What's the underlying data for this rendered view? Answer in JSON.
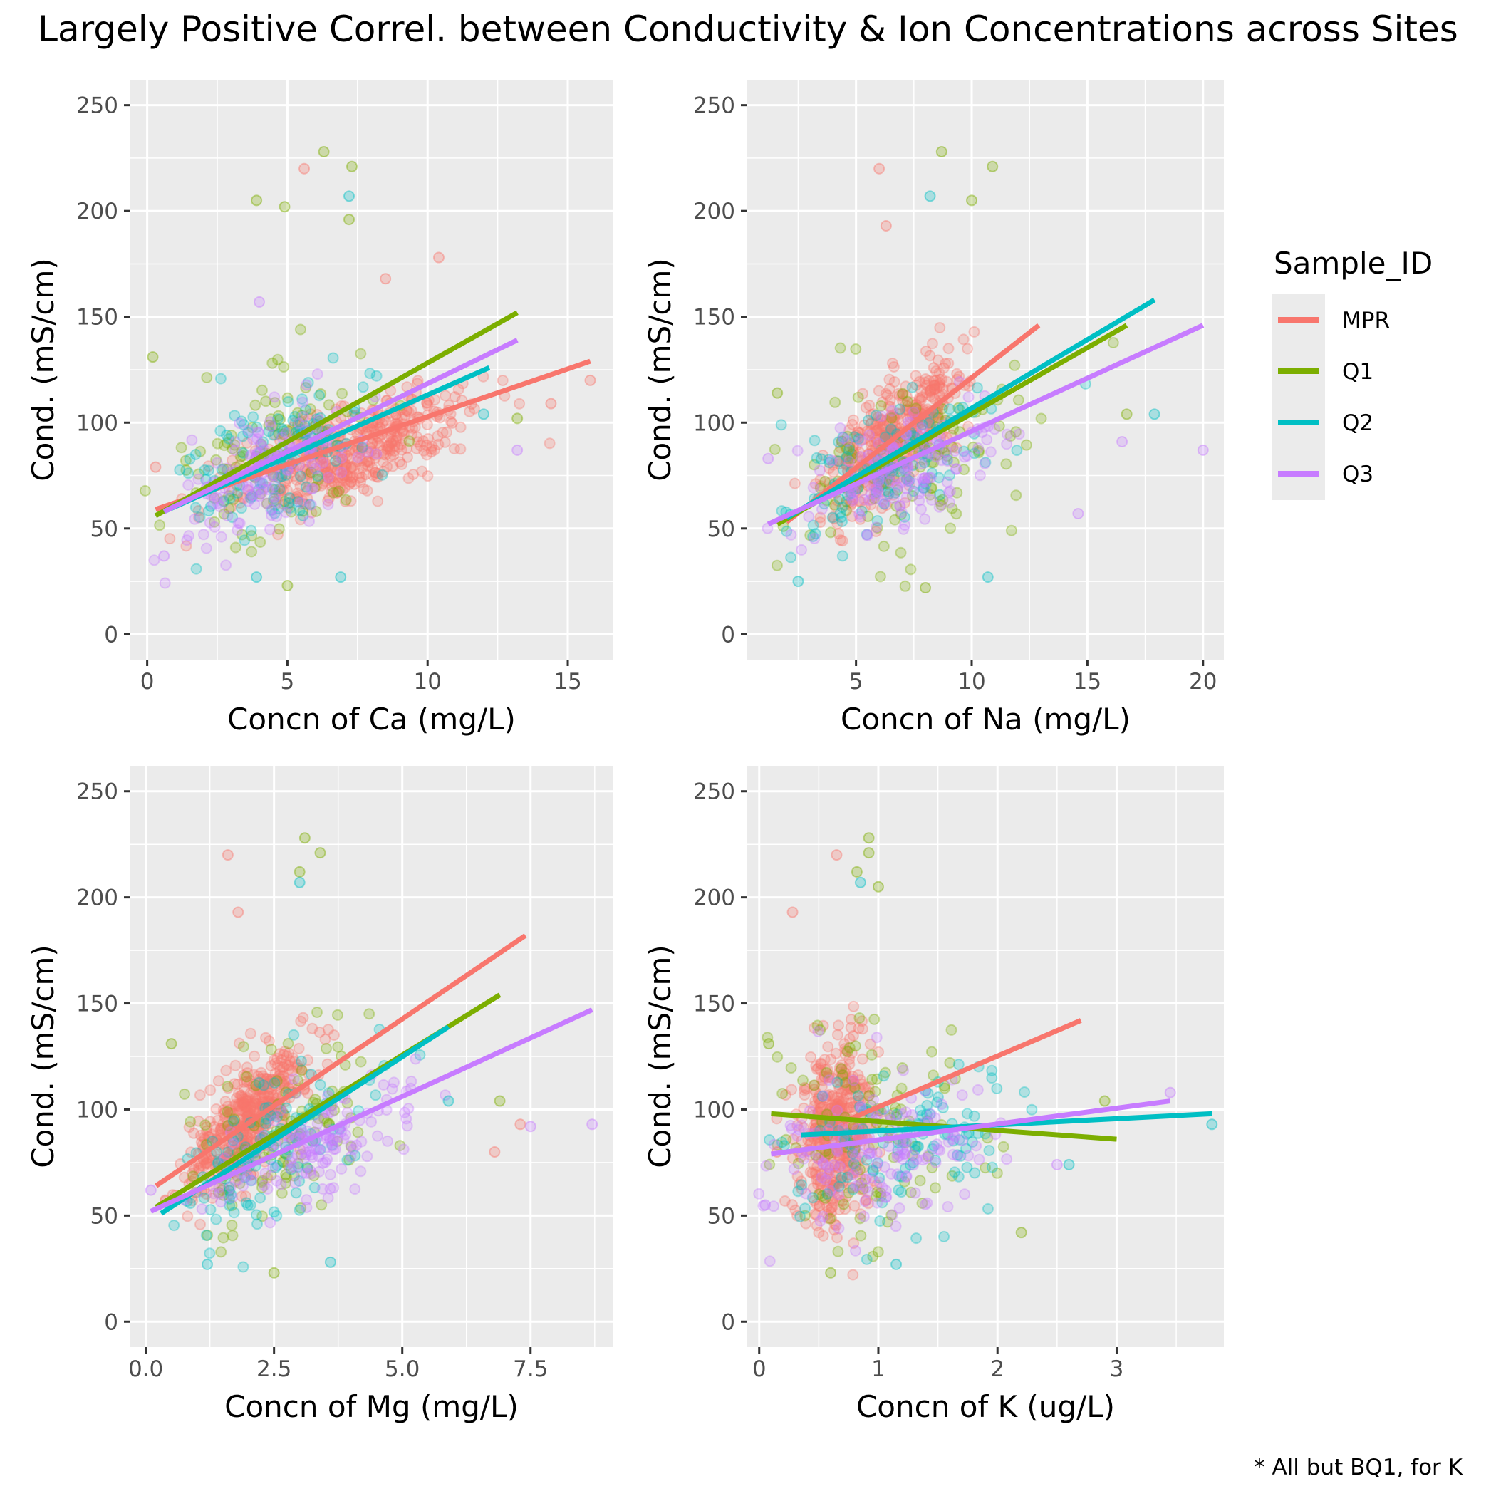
{
  "title": "Largely Positive Correl. between Conductivity & Ion Concentrations across Sites",
  "caption": "* All but BQ1, for K",
  "legend": {
    "title": "Sample_ID",
    "placement": "right",
    "entries": [
      {
        "label": "MPR",
        "color": "#F8766D"
      },
      {
        "label": "Q1",
        "color": "#7CAE00"
      },
      {
        "label": "Q2",
        "color": "#00BFC4"
      },
      {
        "label": "Q3",
        "color": "#C77CFF"
      }
    ]
  },
  "chart_data": [
    {
      "type": "scatter",
      "xlabel": "Concn of Ca (mg/L)",
      "ylabel": "Cond. (mS/cm)",
      "xlim": [
        -0.6,
        16.6
      ],
      "ylim": [
        -12,
        262
      ],
      "xticks": [
        0,
        5,
        10,
        15
      ],
      "xtick_labels": [
        "0",
        "5",
        "10",
        "15"
      ],
      "yticks": [
        0,
        50,
        100,
        150,
        200,
        250
      ],
      "ytick_labels": [
        "0",
        "50",
        "100",
        "150",
        "200",
        "250"
      ],
      "grid": true,
      "fits": [
        {
          "series": "MPR",
          "x": [
            0.3,
            15.8
          ],
          "y": [
            59,
            129
          ]
        },
        {
          "series": "Q1",
          "x": [
            0.3,
            13.2
          ],
          "y": [
            56,
            152
          ]
        },
        {
          "series": "Q2",
          "x": [
            0.6,
            12.2
          ],
          "y": [
            58,
            126
          ]
        },
        {
          "series": "Q3",
          "x": [
            0.6,
            13.2
          ],
          "y": [
            58,
            139
          ]
        }
      ],
      "clouds": [
        {
          "series": "MPR",
          "n": 450,
          "cx": 7.3,
          "cy": 86,
          "sx": 2.1,
          "sy": 14,
          "rho": 0.65
        },
        {
          "series": "Q1",
          "n": 110,
          "cx": 4.6,
          "cy": 88,
          "sx": 1.8,
          "sy": 24,
          "rho": 0.45
        },
        {
          "series": "Q2",
          "n": 110,
          "cx": 4.5,
          "cy": 84,
          "sx": 1.7,
          "sy": 20,
          "rho": 0.5
        },
        {
          "series": "Q3",
          "n": 150,
          "cx": 4.2,
          "cy": 76,
          "sx": 1.4,
          "sy": 17,
          "rho": 0.55
        }
      ],
      "outliers": [
        {
          "series": "Q1",
          "x": 6.3,
          "y": 228
        },
        {
          "series": "Q1",
          "x": 7.3,
          "y": 221
        },
        {
          "series": "Q1",
          "x": 3.9,
          "y": 205
        },
        {
          "series": "Q1",
          "x": 4.9,
          "y": 202
        },
        {
          "series": "Q1",
          "x": 7.2,
          "y": 196
        },
        {
          "series": "Q1",
          "x": 0.2,
          "y": 131
        },
        {
          "series": "Q1",
          "x": 5.0,
          "y": 23
        },
        {
          "series": "Q1",
          "x": 13.2,
          "y": 102
        },
        {
          "series": "MPR",
          "x": 5.6,
          "y": 220
        },
        {
          "series": "MPR",
          "x": 15.8,
          "y": 120
        },
        {
          "series": "MPR",
          "x": 10.4,
          "y": 178
        },
        {
          "series": "MPR",
          "x": 8.5,
          "y": 168
        },
        {
          "series": "MPR",
          "x": 0.3,
          "y": 79
        },
        {
          "series": "MPR",
          "x": 14.4,
          "y": 109
        },
        {
          "series": "Q2",
          "x": 7.2,
          "y": 207
        },
        {
          "series": "Q2",
          "x": 6.9,
          "y": 27
        },
        {
          "series": "Q2",
          "x": 3.9,
          "y": 27
        },
        {
          "series": "Q2",
          "x": 12.0,
          "y": 104
        },
        {
          "series": "Q3",
          "x": 13.2,
          "y": 87
        },
        {
          "series": "Q3",
          "x": 4.0,
          "y": 157
        },
        {
          "series": "Q3",
          "x": 0.6,
          "y": 37
        }
      ]
    },
    {
      "type": "scatter",
      "xlabel": "Concn of Na (mg/L)",
      "ylabel": "Cond. (mS/cm)",
      "xlim": [
        0.3,
        20.9
      ],
      "ylim": [
        -12,
        262
      ],
      "xticks": [
        5,
        10,
        15,
        20
      ],
      "xtick_labels": [
        "5",
        "10",
        "15",
        "20"
      ],
      "yticks": [
        0,
        50,
        100,
        150,
        200,
        250
      ],
      "ytick_labels": [
        "0",
        "50",
        "100",
        "150",
        "200",
        "250"
      ],
      "grid": true,
      "fits": [
        {
          "series": "MPR",
          "x": 2.0,
          "x2": 12.9,
          "y": [
            53,
            146
          ]
        },
        {
          "series": "Q1",
          "x": [
            1.6,
            16.7
          ],
          "y": [
            52,
            146
          ]
        },
        {
          "series": "Q2",
          "x": [
            2.0,
            17.9
          ],
          "y": [
            55,
            158
          ]
        },
        {
          "series": "Q3",
          "x": [
            1.2,
            20.0
          ],
          "y": [
            52,
            146
          ]
        }
      ],
      "clouds": [
        {
          "series": "MPR",
          "n": 450,
          "cx": 6.6,
          "cy": 92,
          "sx": 1.4,
          "sy": 18,
          "rho": 0.7
        },
        {
          "series": "Q1",
          "n": 110,
          "cx": 7.5,
          "cy": 88,
          "sx": 2.6,
          "sy": 24,
          "rho": 0.45
        },
        {
          "series": "Q2",
          "n": 110,
          "cx": 6.2,
          "cy": 80,
          "sx": 2.2,
          "sy": 20,
          "rho": 0.55
        },
        {
          "series": "Q3",
          "n": 150,
          "cx": 7.0,
          "cy": 76,
          "sx": 2.2,
          "sy": 16,
          "rho": 0.5
        }
      ],
      "outliers": [
        {
          "series": "Q1",
          "x": 8.7,
          "y": 228
        },
        {
          "series": "Q1",
          "x": 10.9,
          "y": 221
        },
        {
          "series": "Q1",
          "x": 10.0,
          "y": 205
        },
        {
          "series": "Q1",
          "x": 8.0,
          "y": 22
        },
        {
          "series": "Q1",
          "x": 16.7,
          "y": 104
        },
        {
          "series": "Q1",
          "x": 1.6,
          "y": 114
        },
        {
          "series": "MPR",
          "x": 6.0,
          "y": 220
        },
        {
          "series": "MPR",
          "x": 6.3,
          "y": 193
        },
        {
          "series": "Q2",
          "x": 8.2,
          "y": 207
        },
        {
          "series": "Q2",
          "x": 17.9,
          "y": 104
        },
        {
          "series": "Q2",
          "x": 10.7,
          "y": 27
        },
        {
          "series": "Q2",
          "x": 2.5,
          "y": 25
        },
        {
          "series": "Q3",
          "x": 20.0,
          "y": 87
        },
        {
          "series": "Q3",
          "x": 14.6,
          "y": 57
        },
        {
          "series": "Q3",
          "x": 1.2,
          "y": 83
        },
        {
          "series": "Q3",
          "x": 16.5,
          "y": 91
        }
      ]
    },
    {
      "type": "scatter",
      "xlabel": "Concn of Mg (mg/L)",
      "ylabel": "Cond. (mS/cm)",
      "xlim": [
        -0.3,
        9.1
      ],
      "ylim": [
        -12,
        262
      ],
      "xticks": [
        0,
        2.5,
        5,
        7.5
      ],
      "xtick_labels": [
        "0.0",
        "2.5",
        "5.0",
        "7.5"
      ],
      "yticks": [
        0,
        50,
        100,
        150,
        200,
        250
      ],
      "ytick_labels": [
        "0",
        "50",
        "100",
        "150",
        "200",
        "250"
      ],
      "grid": true,
      "fits": [
        {
          "series": "MPR",
          "x": [
            0.2,
            7.4
          ],
          "y": [
            64,
            182
          ]
        },
        {
          "series": "Q1",
          "x": [
            0.2,
            6.9
          ],
          "y": [
            54,
            154
          ]
        },
        {
          "series": "Q2",
          "x": [
            0.3,
            5.9
          ],
          "y": [
            51,
            139
          ]
        },
        {
          "series": "Q3",
          "x": [
            0.1,
            8.7
          ],
          "y": [
            52,
            147
          ]
        }
      ],
      "clouds": [
        {
          "series": "MPR",
          "n": 450,
          "cx": 2.0,
          "cy": 96,
          "sx": 0.6,
          "sy": 17,
          "rho": 0.7
        },
        {
          "series": "Q1",
          "n": 110,
          "cx": 2.6,
          "cy": 88,
          "sx": 1.0,
          "sy": 24,
          "rho": 0.45
        },
        {
          "series": "Q2",
          "n": 110,
          "cx": 2.6,
          "cy": 82,
          "sx": 0.9,
          "sy": 20,
          "rho": 0.5
        },
        {
          "series": "Q3",
          "n": 150,
          "cx": 3.2,
          "cy": 84,
          "sx": 0.9,
          "sy": 15,
          "rho": 0.55
        }
      ],
      "outliers": [
        {
          "series": "Q1",
          "x": 3.1,
          "y": 228
        },
        {
          "series": "Q1",
          "x": 3.4,
          "y": 221
        },
        {
          "series": "Q1",
          "x": 3.0,
          "y": 212
        },
        {
          "series": "Q1",
          "x": 2.5,
          "y": 23
        },
        {
          "series": "Q1",
          "x": 6.9,
          "y": 104
        },
        {
          "series": "Q1",
          "x": 0.5,
          "y": 131
        },
        {
          "series": "MPR",
          "x": 1.6,
          "y": 220
        },
        {
          "series": "MPR",
          "x": 1.8,
          "y": 193
        },
        {
          "series": "MPR",
          "x": 7.3,
          "y": 93
        },
        {
          "series": "MPR",
          "x": 6.8,
          "y": 80
        },
        {
          "series": "Q2",
          "x": 3.0,
          "y": 207
        },
        {
          "series": "Q2",
          "x": 5.9,
          "y": 104
        },
        {
          "series": "Q2",
          "x": 3.6,
          "y": 28
        },
        {
          "series": "Q2",
          "x": 1.2,
          "y": 27
        },
        {
          "series": "Q3",
          "x": 8.7,
          "y": 93
        },
        {
          "series": "Q3",
          "x": 7.5,
          "y": 92
        },
        {
          "series": "Q3",
          "x": 0.1,
          "y": 62
        }
      ]
    },
    {
      "type": "scatter",
      "xlabel": "Concn of K (ug/L)",
      "ylabel": "Cond. (mS/cm)",
      "xlim": [
        -0.1,
        3.9
      ],
      "ylim": [
        -12,
        262
      ],
      "xticks": [
        0,
        1,
        2,
        3
      ],
      "xtick_labels": [
        "0",
        "1",
        "2",
        "3"
      ],
      "yticks": [
        0,
        50,
        100,
        150,
        200,
        250
      ],
      "ytick_labels": [
        "0",
        "50",
        "100",
        "150",
        "200",
        "250"
      ],
      "grid": true,
      "fits": [
        {
          "series": "MPR",
          "x": [
            0.7,
            2.7
          ],
          "y": [
            94,
            142
          ]
        },
        {
          "series": "Q1",
          "x": [
            0.1,
            3.0
          ],
          "y": [
            98,
            86
          ]
        },
        {
          "series": "Q2",
          "x": [
            0.35,
            3.8
          ],
          "y": [
            88,
            98
          ]
        },
        {
          "series": "Q3",
          "x": [
            0.1,
            3.45
          ],
          "y": [
            79,
            104
          ]
        }
      ],
      "clouds": [
        {
          "series": "MPR",
          "n": 450,
          "cx": 0.65,
          "cy": 90,
          "sx": 0.16,
          "sy": 20,
          "rho": 0.2
        },
        {
          "series": "Q1",
          "n": 110,
          "cx": 1.0,
          "cy": 88,
          "sx": 0.5,
          "sy": 26,
          "rho": -0.05
        },
        {
          "series": "Q2",
          "n": 110,
          "cx": 1.2,
          "cy": 84,
          "sx": 0.5,
          "sy": 20,
          "rho": 0.1
        },
        {
          "series": "Q3",
          "n": 150,
          "cx": 1.0,
          "cy": 80,
          "sx": 0.45,
          "sy": 18,
          "rho": 0.2
        }
      ],
      "outliers": [
        {
          "series": "Q1",
          "x": 0.92,
          "y": 228
        },
        {
          "series": "Q1",
          "x": 0.92,
          "y": 221
        },
        {
          "series": "Q1",
          "x": 0.82,
          "y": 212
        },
        {
          "series": "Q1",
          "x": 1.0,
          "y": 205
        },
        {
          "series": "Q1",
          "x": 0.08,
          "y": 131
        },
        {
          "series": "Q1",
          "x": 2.9,
          "y": 104
        },
        {
          "series": "Q1",
          "x": 2.2,
          "y": 42
        },
        {
          "series": "Q1",
          "x": 0.6,
          "y": 23
        },
        {
          "series": "MPR",
          "x": 0.65,
          "y": 220
        },
        {
          "series": "MPR",
          "x": 0.28,
          "y": 193
        },
        {
          "series": "MPR",
          "x": 0.15,
          "y": 80
        },
        {
          "series": "Q2",
          "x": 0.85,
          "y": 207
        },
        {
          "series": "Q2",
          "x": 3.8,
          "y": 93
        },
        {
          "series": "Q2",
          "x": 2.6,
          "y": 74
        },
        {
          "series": "Q2",
          "x": 1.15,
          "y": 27
        },
        {
          "series": "Q3",
          "x": 3.45,
          "y": 108
        },
        {
          "series": "Q3",
          "x": 2.5,
          "y": 74
        },
        {
          "series": "Q3",
          "x": 0.05,
          "y": 55
        }
      ]
    }
  ]
}
